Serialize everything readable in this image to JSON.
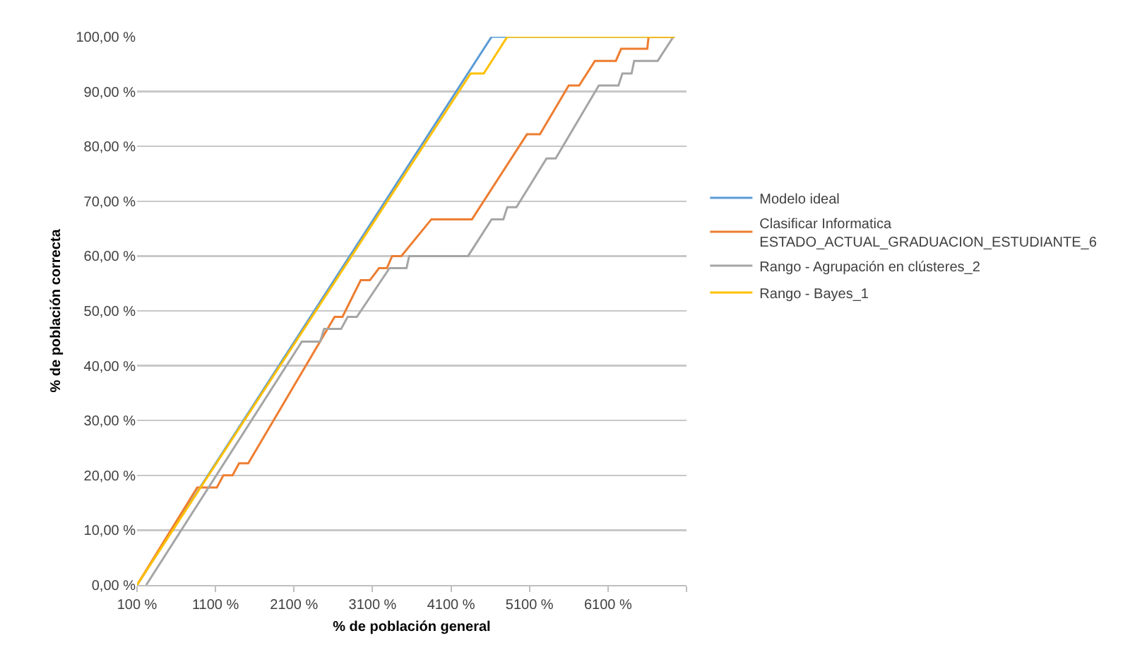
{
  "chart_data": {
    "type": "line",
    "xlabel": "% de población general",
    "ylabel": "% de población correcta",
    "xlim": [
      100,
      7100
    ],
    "xticks": [
      {
        "value": 100,
        "label": "100 %"
      },
      {
        "value": 1100,
        "label": "1100 %"
      },
      {
        "value": 2100,
        "label": "2100 %"
      },
      {
        "value": 3100,
        "label": "3100 %"
      },
      {
        "value": 4100,
        "label": "4100 %"
      },
      {
        "value": 5100,
        "label": "5100 %"
      },
      {
        "value": 6100,
        "label": "6100 %"
      },
      {
        "value": 7100,
        "label": null
      }
    ],
    "ylim": [
      0,
      100
    ],
    "yticks": [
      {
        "value": 0,
        "label": "0,00 %"
      },
      {
        "value": 10,
        "label": "10,00 %"
      },
      {
        "value": 20,
        "label": "20,00 %"
      },
      {
        "value": 30,
        "label": "30,00 %"
      },
      {
        "value": 40,
        "label": "40,00 %"
      },
      {
        "value": 50,
        "label": "50,00 %"
      },
      {
        "value": 60,
        "label": "60,00 %"
      },
      {
        "value": 70,
        "label": "70,00 %"
      },
      {
        "value": 80,
        "label": "80,00 %"
      },
      {
        "value": 90,
        "label": "90,00 %"
      },
      {
        "value": 100,
        "label": "100,00 %"
      }
    ],
    "grid": "y",
    "legend": "right",
    "marker": "none",
    "line_style": "solid",
    "series": [
      {
        "name": "Modelo ideal",
        "color": "#5b9bd5",
        "x": [
          100,
          4617,
          6950
        ],
        "values": [
          0,
          100,
          100
        ]
      },
      {
        "name": "Clasificar Informatica\nESTADO_ACTUAL_GRADUACION_ESTUDIANTE_6",
        "color": "#ed7d31",
        "x": [
          100,
          867,
          1117,
          1200,
          1317,
          1400,
          1517,
          2617,
          2717,
          2950,
          3067,
          3183,
          3283,
          3350,
          3467,
          3850,
          4367,
          5067,
          5233,
          5600,
          5733,
          5933,
          6200,
          6267,
          6600,
          6617,
          6950
        ],
        "values": [
          0,
          17.8,
          17.8,
          20,
          20,
          22.2,
          22.2,
          48.9,
          48.9,
          55.6,
          55.6,
          57.8,
          57.8,
          60,
          60,
          66.7,
          66.7,
          82.2,
          82.2,
          91.1,
          91.1,
          95.6,
          95.6,
          97.8,
          97.8,
          100,
          100
        ]
      },
      {
        "name": "Rango - Agrupación en clústeres_2",
        "color": "#a5a5a5",
        "x": [
          217,
          2200,
          2433,
          2483,
          2700,
          2783,
          2900,
          3317,
          3533,
          3567,
          4317,
          4617,
          4767,
          4817,
          4933,
          5317,
          5433,
          5983,
          6233,
          6283,
          6400,
          6433,
          6733,
          6933
        ],
        "values": [
          0,
          44.4,
          44.4,
          46.7,
          46.7,
          48.9,
          48.9,
          57.8,
          57.8,
          60,
          60,
          66.7,
          66.7,
          68.9,
          68.9,
          77.8,
          77.8,
          91.1,
          91.1,
          93.3,
          93.3,
          95.6,
          95.6,
          100
        ]
      },
      {
        "name": "Rango - Bayes_1",
        "color": "#ffc000",
        "x": [
          100,
          4350,
          4517,
          4817,
          6950
        ],
        "values": [
          0,
          93.3,
          93.3,
          100,
          100
        ]
      }
    ]
  }
}
